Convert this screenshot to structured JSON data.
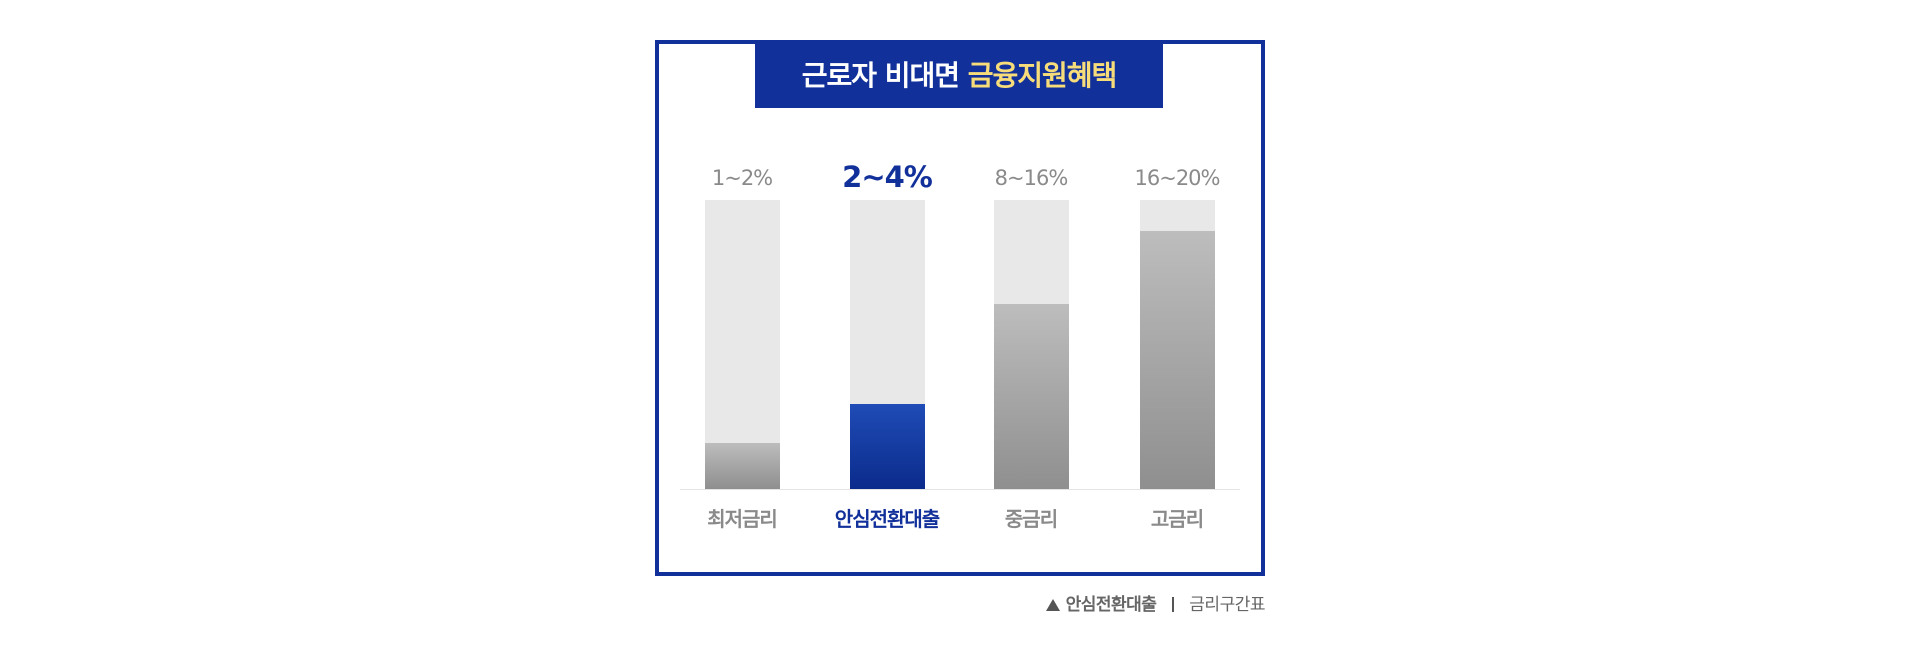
{
  "title": {
    "part1": "근로자 비대면",
    "highlight": "금융지원혜택"
  },
  "items": [
    {
      "range": "1~2%",
      "label": "최저금리"
    },
    {
      "range": "2~4%",
      "label": "안심전환대출"
    },
    {
      "range": "8~16%",
      "label": "중금리"
    },
    {
      "range": "16~20%",
      "label": "고금리"
    }
  ],
  "footer": {
    "left": "안심전환대출",
    "right": "금리구간표"
  }
}
